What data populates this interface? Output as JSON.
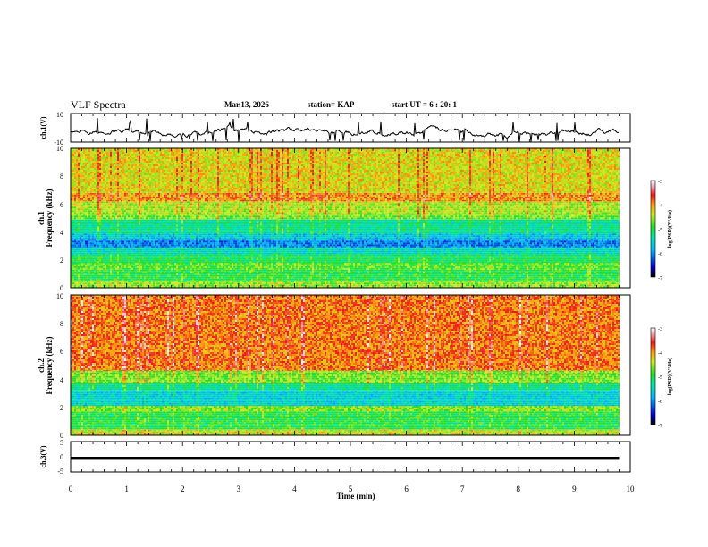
{
  "header": {
    "title": "VLF Spectra",
    "date": "Mar.13, 2026",
    "station": "station= KAP",
    "start": "start  UT =   6 : 20: 1"
  },
  "chart_data": [
    {
      "type": "line",
      "panel": "ch1-waveform",
      "ylabel": "ch.1(V)",
      "ylim": [
        -10,
        10
      ],
      "yticks": [
        "10",
        "-10"
      ],
      "xlim": [
        0,
        10
      ],
      "description_values": {
        "data_xmax": 9.8,
        "typical_range": [
          -8,
          3
        ]
      }
    },
    {
      "type": "heatmap",
      "panel": "ch1-spectrogram",
      "ylabel": "ch.1\nFrequency (kHz)",
      "ylabel_top": "ch.1",
      "ylabel_bottom": "Frequency (kHz)",
      "ylim": [
        0,
        10
      ],
      "yticks": [
        "0",
        "2",
        "4",
        "6",
        "8",
        "10"
      ],
      "xlim": [
        0,
        10
      ],
      "data_xmax": 9.8,
      "colorbar": {
        "label": "log(PSD)(V²/Hz)",
        "range": [
          -7,
          -3
        ],
        "ticks": [
          "-3",
          "-4",
          "-5",
          "-6",
          "-7"
        ]
      },
      "bands": [
        {
          "f0": 0.0,
          "f1": 0.5,
          "level": -4.6
        },
        {
          "f0": 0.5,
          "f1": 1.3,
          "level": -5.0
        },
        {
          "f0": 1.3,
          "f1": 1.8,
          "level": -4.8
        },
        {
          "f0": 1.8,
          "f1": 2.4,
          "level": -5.1
        },
        {
          "f0": 2.4,
          "f1": 2.9,
          "level": -5.5
        },
        {
          "f0": 2.9,
          "f1": 3.5,
          "level": -6.1
        },
        {
          "f0": 3.5,
          "f1": 3.9,
          "level": -5.7
        },
        {
          "f0": 3.9,
          "f1": 4.9,
          "level": -5.3
        },
        {
          "f0": 4.9,
          "f1": 5.3,
          "level": -4.7
        },
        {
          "f0": 5.3,
          "f1": 6.2,
          "level": -4.5
        },
        {
          "f0": 6.2,
          "f1": 6.8,
          "level": -4.0
        },
        {
          "f0": 6.8,
          "f1": 10.0,
          "level": -4.3
        }
      ]
    },
    {
      "type": "heatmap",
      "panel": "ch2-spectrogram",
      "ylabel": "ch.2\nFrequency (kHz)",
      "ylabel_top": "ch.2",
      "ylabel_bottom": "Frequency (kHz)",
      "ylim": [
        0,
        10
      ],
      "yticks": [
        "0",
        "2",
        "4",
        "6",
        "8",
        "10"
      ],
      "xlim": [
        0,
        10
      ],
      "data_xmax": 9.8,
      "colorbar": {
        "label": "log(PSD)(V²/Hz)",
        "range": [
          -7,
          -3
        ],
        "ticks": [
          "-3",
          "-4",
          "-5",
          "-6",
          "-7"
        ]
      },
      "bands": [
        {
          "f0": 0.0,
          "f1": 0.4,
          "level": -4.4
        },
        {
          "f0": 0.4,
          "f1": 1.7,
          "level": -5.0
        },
        {
          "f0": 1.7,
          "f1": 2.1,
          "level": -4.6
        },
        {
          "f0": 2.1,
          "f1": 3.2,
          "level": -5.6
        },
        {
          "f0": 3.2,
          "f1": 3.7,
          "level": -5.3
        },
        {
          "f0": 3.7,
          "f1": 4.6,
          "level": -4.7
        },
        {
          "f0": 4.6,
          "f1": 10.0,
          "level": -3.9
        }
      ]
    },
    {
      "type": "line",
      "panel": "ch3-waveform",
      "ylabel": "ch.3(V)",
      "ylim": [
        -5,
        5
      ],
      "yticks": [
        "5",
        "0",
        "-5"
      ],
      "xlim": [
        0,
        10
      ],
      "xlabel": "Time  (min)",
      "xticks": [
        "0",
        "1",
        "2",
        "3",
        "4",
        "5",
        "6",
        "7",
        "8",
        "9",
        "10"
      ],
      "description_values": {
        "data_xmax": 9.8,
        "level_range": [
          -1,
          0
        ]
      }
    }
  ]
}
